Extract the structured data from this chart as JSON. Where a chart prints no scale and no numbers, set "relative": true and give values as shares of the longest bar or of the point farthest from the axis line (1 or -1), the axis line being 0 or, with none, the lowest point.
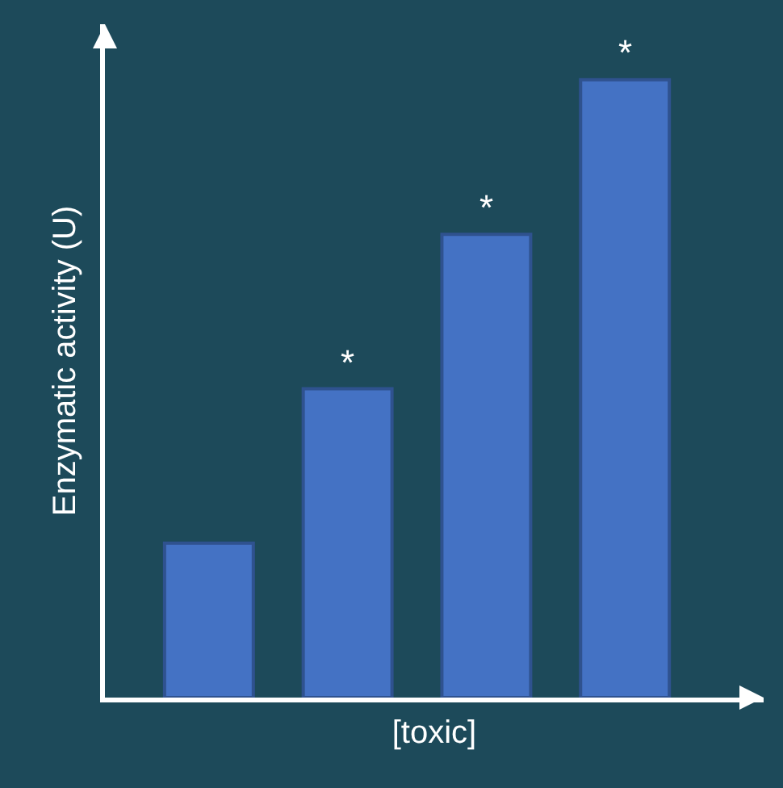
{
  "chart_data": {
    "type": "bar",
    "relative": true,
    "xlabel": "[toxic]",
    "ylabel": "Enzymatic activity (U)",
    "categories": [
      null,
      null,
      null,
      null
    ],
    "values": [
      0.25,
      0.5,
      0.75,
      1.0
    ],
    "color": "#4472c4",
    "annotations": [
      {
        "text": "*",
        "y": 0.5
      },
      {
        "text": "*",
        "y": 0.75
      },
      {
        "text": "*",
        "y": 1.0
      }
    ],
    "grid": false,
    "legend": false
  }
}
